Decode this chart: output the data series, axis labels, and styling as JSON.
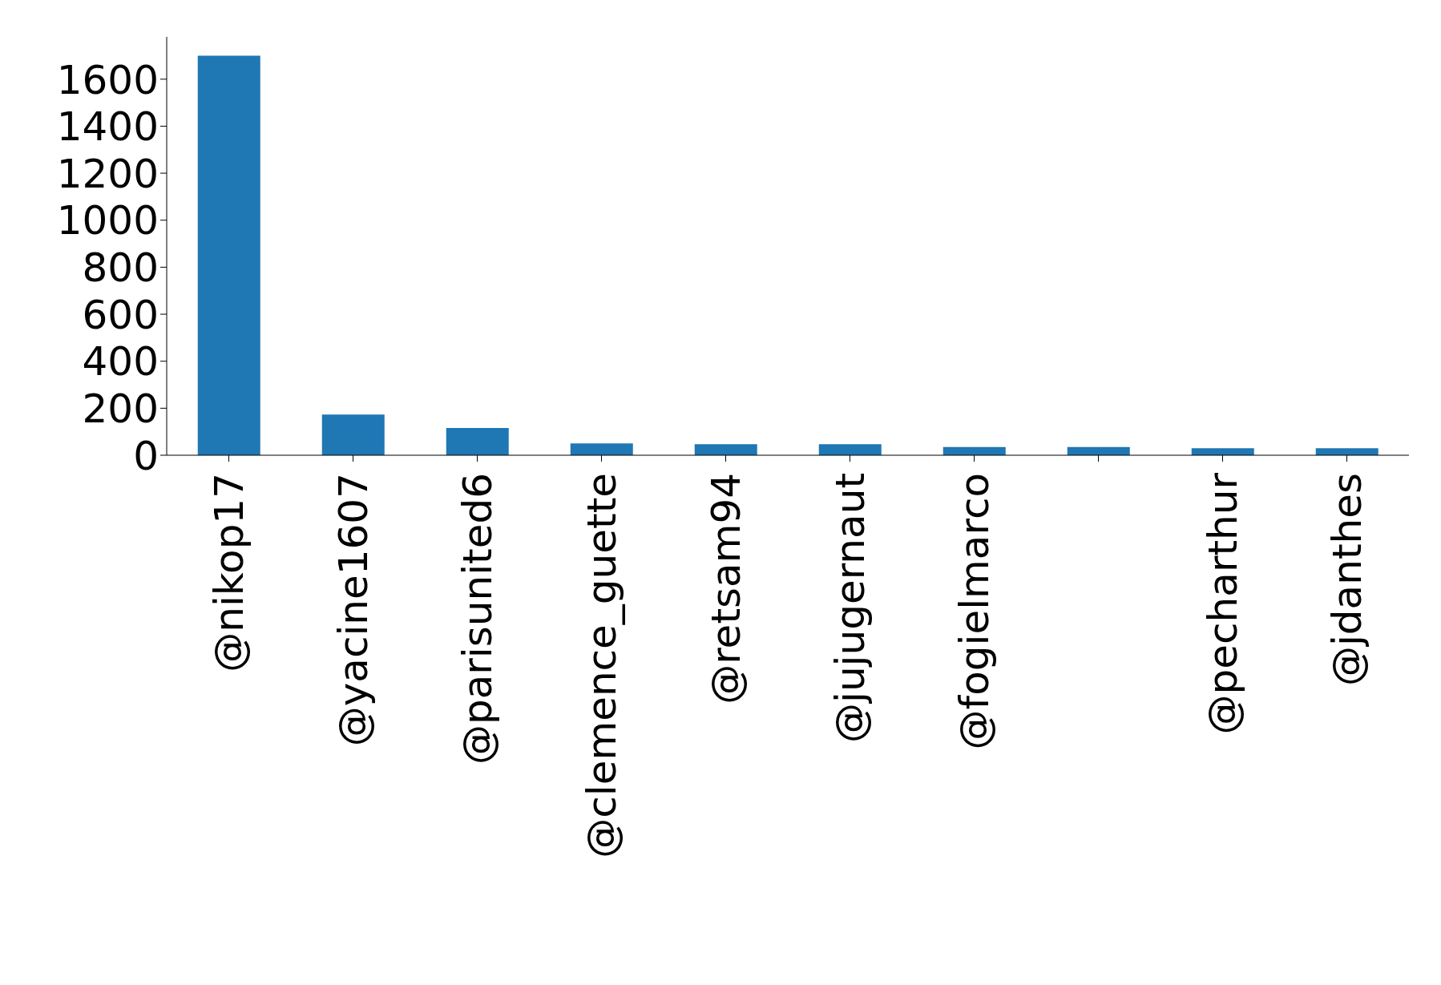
{
  "chart_data": {
    "type": "bar",
    "categories": [
      "@nikop17",
      "@yacine1607",
      "@parisunited6",
      "@clemence_guette",
      "@retsam94",
      "@jujugernaut",
      "@fogielmarco",
      null,
      "@pecharthur",
      "@jdanthes"
    ],
    "values": [
      1700,
      173,
      116,
      50,
      47,
      47,
      35,
      35,
      30,
      30
    ],
    "color": "#1f77b4",
    "ylim": [
      0,
      1780
    ],
    "yticks": [
      0,
      200,
      400,
      600,
      800,
      1000,
      1200,
      1400,
      1600
    ],
    "grid": false,
    "legend": false
  }
}
